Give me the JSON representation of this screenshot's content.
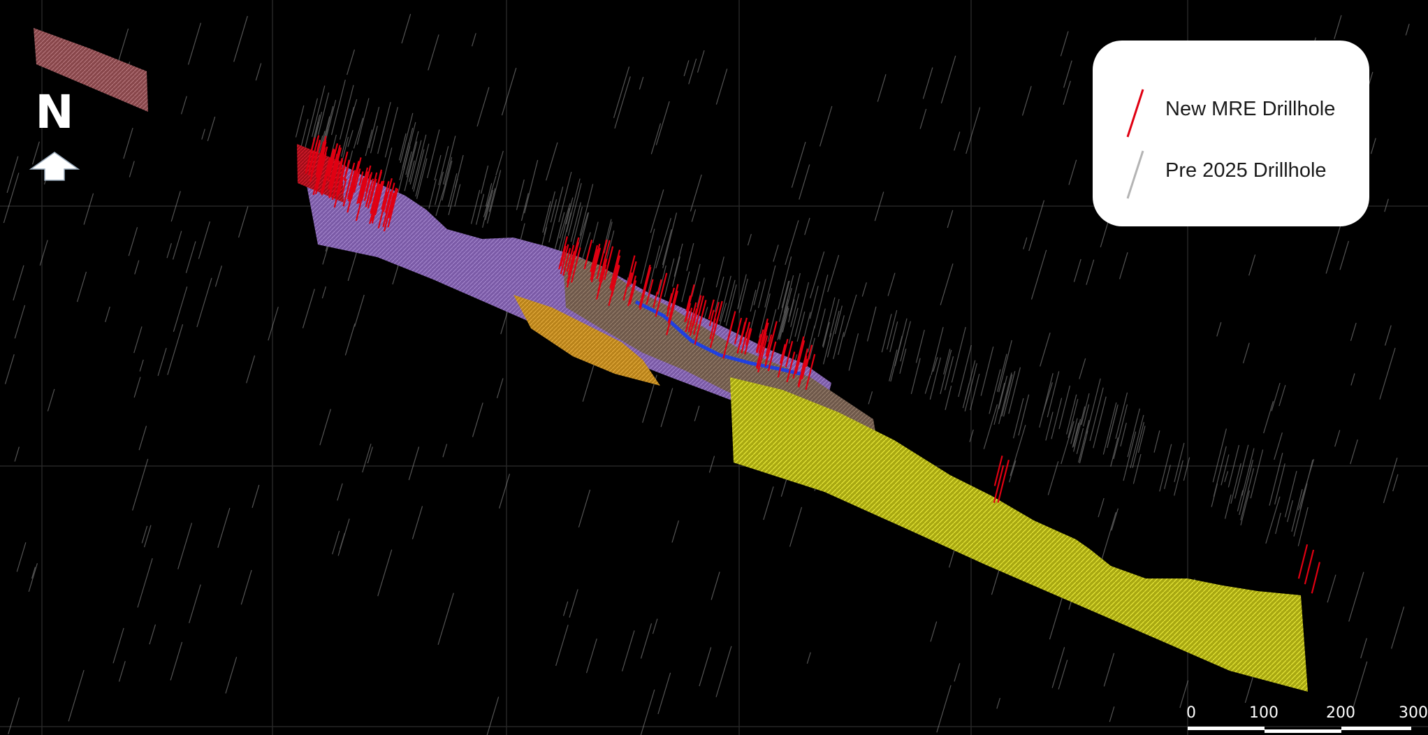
{
  "compass": {
    "label": "N",
    "icon": "north-arrow-icon"
  },
  "legend": {
    "items": [
      {
        "label": "New MRE Drillhole",
        "color": "#e00012",
        "icon": "red-drillhole-line-icon"
      },
      {
        "label": "Pre 2025 Drillhole",
        "color": "#b4b4b4",
        "icon": "grey-drillhole-line-icon"
      }
    ]
  },
  "scale_bar": {
    "ticks": [
      "0",
      "100",
      "200",
      "300"
    ]
  },
  "colors": {
    "background": "#000000",
    "grid": "#2a2a2a",
    "purple_domain": "#8a6ab0",
    "yellow_domain": "#c8c81e",
    "orange_domain": "#d29a1e",
    "brown_domain": "#8a6e5a",
    "pink_domain": "#b86a6a",
    "blue_domain": "#2040e0",
    "red_domain": "#c01020"
  }
}
